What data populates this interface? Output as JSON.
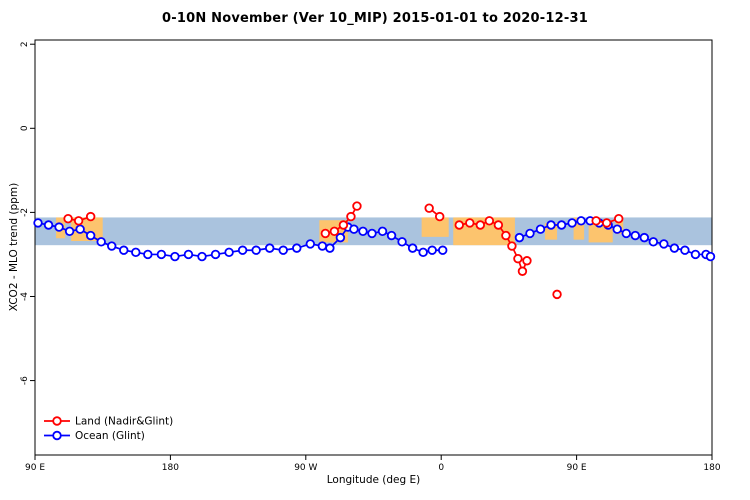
{
  "chart_data": {
    "type": "scatter",
    "title": "0-10N November (Ver 10_MIP)   2015-01-01 to 2020-12-31",
    "xlabel": "Longitude (deg E)",
    "ylabel": "XCO2 - MLO trend (ppm)",
    "xlim": [
      90,
      540
    ],
    "ylim": [
      -7.77,
      2.1
    ],
    "grid": false,
    "xticks": [
      {
        "value": 90,
        "label": "90 E"
      },
      {
        "value": 180,
        "label": "180"
      },
      {
        "value": 270,
        "label": "90 W"
      },
      {
        "value": 360,
        "label": "0"
      },
      {
        "value": 450,
        "label": "90 E"
      },
      {
        "value": 540,
        "label": "180"
      }
    ],
    "yticks": [
      {
        "value": 2,
        "label": "2"
      },
      {
        "value": 0,
        "label": "0"
      },
      {
        "value": -2,
        "label": "-2"
      },
      {
        "value": -4,
        "label": "-4"
      },
      {
        "value": -6,
        "label": "-6"
      }
    ],
    "band": {
      "description": "0-10N latitude map strip: ocean (blue) with land masses (orange)",
      "top": -2.12,
      "bottom": -2.78,
      "ocean_color": "#aac3de",
      "land_color": "#fcc46e",
      "land_segments": [
        [
          104,
          110,
          0,
          0.75
        ],
        [
          114,
          135,
          0,
          0.85
        ],
        [
          279,
          298,
          0.1,
          0.9
        ],
        [
          347,
          365,
          0,
          0.7
        ],
        [
          368,
          409,
          0,
          1
        ],
        [
          429,
          437,
          0.2,
          0.8
        ],
        [
          448,
          455,
          0,
          0.8
        ],
        [
          458,
          474,
          0.15,
          0.9
        ],
        [
          476,
          481,
          0,
          0.6
        ]
      ]
    },
    "series": [
      {
        "name": "Land (Nadir&Glint)",
        "color": "#ff0000",
        "marker": "open-circle",
        "segments": [
          [
            [
              112,
              -2.15
            ],
            [
              119,
              -2.2
            ],
            [
              127,
              -2.1
            ]
          ],
          [
            [
              283,
              -2.5
            ],
            [
              289,
              -2.45
            ],
            [
              295,
              -2.3
            ],
            [
              300,
              -2.1
            ],
            [
              304,
              -1.85
            ]
          ],
          [
            [
              352,
              -1.9
            ],
            [
              359,
              -2.1
            ]
          ],
          [
            [
              372,
              -2.3
            ],
            [
              379,
              -2.25
            ],
            [
              386,
              -2.3
            ],
            [
              392,
              -2.2
            ],
            [
              398,
              -2.3
            ],
            [
              403,
              -2.55
            ],
            [
              407,
              -2.8
            ],
            [
              411,
              -3.1
            ],
            [
              414,
              -3.4
            ],
            [
              417,
              -3.15
            ]
          ],
          [
            [
              437,
              -3.95
            ]
          ],
          [
            [
              463,
              -2.2
            ],
            [
              470,
              -2.25
            ],
            [
              478,
              -2.15
            ]
          ]
        ]
      },
      {
        "name": "Ocean (Glint)",
        "color": "#0000ff",
        "marker": "open-circle",
        "segments": [
          [
            [
              92,
              -2.25
            ],
            [
              99,
              -2.3
            ],
            [
              106,
              -2.35
            ],
            [
              113,
              -2.45
            ],
            [
              120,
              -2.4
            ],
            [
              127,
              -2.55
            ],
            [
              134,
              -2.7
            ],
            [
              141,
              -2.8
            ],
            [
              149,
              -2.9
            ],
            [
              157,
              -2.95
            ],
            [
              165,
              -3.0
            ],
            [
              174,
              -3.0
            ],
            [
              183,
              -3.05
            ],
            [
              192,
              -3.0
            ],
            [
              201,
              -3.05
            ],
            [
              210,
              -3.0
            ],
            [
              219,
              -2.95
            ],
            [
              228,
              -2.9
            ],
            [
              237,
              -2.9
            ],
            [
              246,
              -2.85
            ],
            [
              255,
              -2.9
            ],
            [
              264,
              -2.85
            ],
            [
              273,
              -2.75
            ],
            [
              281,
              -2.8
            ],
            [
              286,
              -2.85
            ],
            [
              293,
              -2.6
            ],
            [
              298,
              -2.35
            ],
            [
              302,
              -2.4
            ],
            [
              308,
              -2.45
            ],
            [
              314,
              -2.5
            ],
            [
              321,
              -2.45
            ],
            [
              327,
              -2.55
            ],
            [
              334,
              -2.7
            ],
            [
              341,
              -2.85
            ],
            [
              348,
              -2.95
            ],
            [
              354,
              -2.9
            ],
            [
              361,
              -2.9
            ]
          ],
          [
            [
              412,
              -2.6
            ],
            [
              419,
              -2.5
            ],
            [
              426,
              -2.4
            ],
            [
              433,
              -2.3
            ],
            [
              440,
              -2.3
            ],
            [
              447,
              -2.25
            ],
            [
              453,
              -2.2
            ],
            [
              459,
              -2.2
            ],
            [
              465,
              -2.25
            ],
            [
              471,
              -2.3
            ],
            [
              477,
              -2.4
            ],
            [
              483,
              -2.5
            ],
            [
              489,
              -2.55
            ],
            [
              495,
              -2.6
            ],
            [
              501,
              -2.7
            ],
            [
              508,
              -2.75
            ],
            [
              515,
              -2.85
            ],
            [
              522,
              -2.9
            ],
            [
              529,
              -3.0
            ],
            [
              536,
              -3.0
            ],
            [
              539,
              -3.05
            ]
          ]
        ]
      }
    ],
    "legend": {
      "position": "bottom-left",
      "entries": [
        "Land (Nadir&Glint)",
        "Ocean (Glint)"
      ]
    }
  }
}
